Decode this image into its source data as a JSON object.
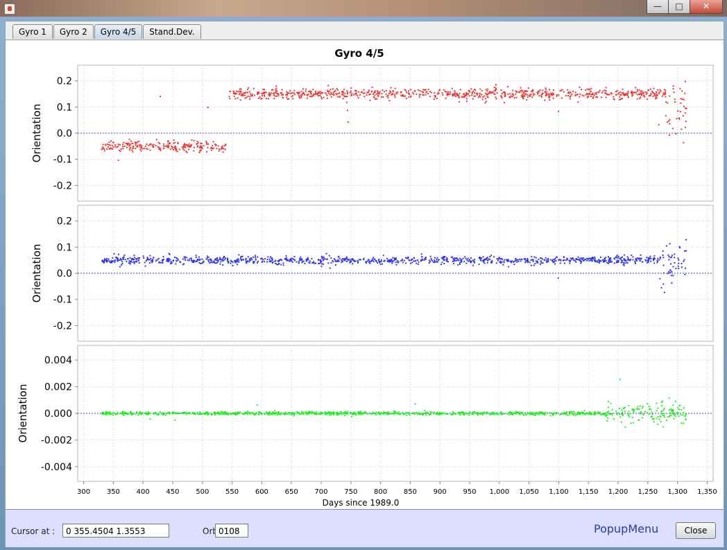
{
  "window": {
    "buttons": [
      "minimize-icon",
      "maximize-icon",
      "close-icon"
    ]
  },
  "tabs": [
    {
      "label": "Gyro 1",
      "active": false
    },
    {
      "label": "Gyro 2",
      "active": false
    },
    {
      "label": "Gyro 4/5",
      "active": true
    },
    {
      "label": "Stand.Dev.",
      "active": false
    }
  ],
  "chart_title": "Gyro 4/5",
  "colors": {
    "series1": "#ee3333",
    "series2": "#3333ee",
    "series3": "#22ee22",
    "zero_line": "#3b3bd6"
  },
  "chart_data": [
    {
      "type": "scatter",
      "ylabel": "Orientation",
      "xlim": [
        290,
        1360
      ],
      "ylim": [
        -0.26,
        0.26
      ],
      "yticks": [
        0.2,
        0.1,
        0.0,
        -0.1,
        -0.2
      ],
      "ytick_labels": [
        "0.2",
        "0.1",
        "0.0",
        "-0.1",
        "-0.2"
      ],
      "grid": true,
      "zero_line": 0,
      "segments": [
        {
          "x_start": 330,
          "x_end": 540,
          "y_level": -0.05,
          "spread": 0.02
        },
        {
          "x_start": 545,
          "x_end": 1280,
          "y_level": 0.15,
          "spread": 0.02
        },
        {
          "x_start": 1280,
          "x_end": 1315,
          "y_level": 0.1,
          "spread": 0.13
        }
      ]
    },
    {
      "type": "scatter",
      "ylabel": "Orientation",
      "xlim": [
        290,
        1360
      ],
      "ylim": [
        -0.26,
        0.26
      ],
      "yticks": [
        0.2,
        0.1,
        0.0,
        -0.1,
        -0.2
      ],
      "ytick_labels": [
        "0.2",
        "0.1",
        "0.0",
        "-0.1",
        "-0.2"
      ],
      "grid": true,
      "zero_line": 0,
      "segments": [
        {
          "x_start": 330,
          "x_end": 1270,
          "y_level": 0.05,
          "spread": 0.015
        },
        {
          "x_start": 1270,
          "x_end": 1315,
          "y_level": 0.04,
          "spread": 0.09
        }
      ]
    },
    {
      "type": "scatter",
      "ylabel": "Orientation",
      "xlim": [
        290,
        1360
      ],
      "ylim": [
        -0.0051,
        0.0051
      ],
      "yticks": [
        0.004,
        0.002,
        0.0,
        -0.002,
        -0.004
      ],
      "ytick_labels": [
        "0.004",
        "0.002",
        "0.000",
        "-0.002",
        "-0.004"
      ],
      "grid": true,
      "zero_line": 0,
      "segments": [
        {
          "x_start": 330,
          "x_end": 1180,
          "y_level": 0.0,
          "spread": 0.00012
        },
        {
          "x_start": 1180,
          "x_end": 1315,
          "y_level": 0.0,
          "spread": 0.0007
        }
      ]
    }
  ],
  "x_axis": {
    "label": "Days since 1989.0",
    "ticks": [
      300,
      350,
      400,
      450,
      500,
      550,
      600,
      650,
      700,
      750,
      800,
      850,
      900,
      950,
      1000,
      1050,
      1100,
      1150,
      1200,
      1250,
      1300,
      1350
    ],
    "tick_labels": [
      "300",
      "350",
      "400",
      "450",
      "500",
      "550",
      "600",
      "650",
      "700",
      "750",
      "800",
      "850",
      "900",
      "950",
      "1,000",
      "1,050",
      "1,100",
      "1,150",
      "1,200",
      "1,250",
      "1,300",
      "1,350"
    ]
  },
  "bottom": {
    "cursor_label": "Cursor at :",
    "cursor_value": "0   355.4504   1.3553",
    "orbit_label": "Orbit:",
    "orbit_value": "0108",
    "popup_label": "PopupMenu",
    "close_label": "Close"
  }
}
